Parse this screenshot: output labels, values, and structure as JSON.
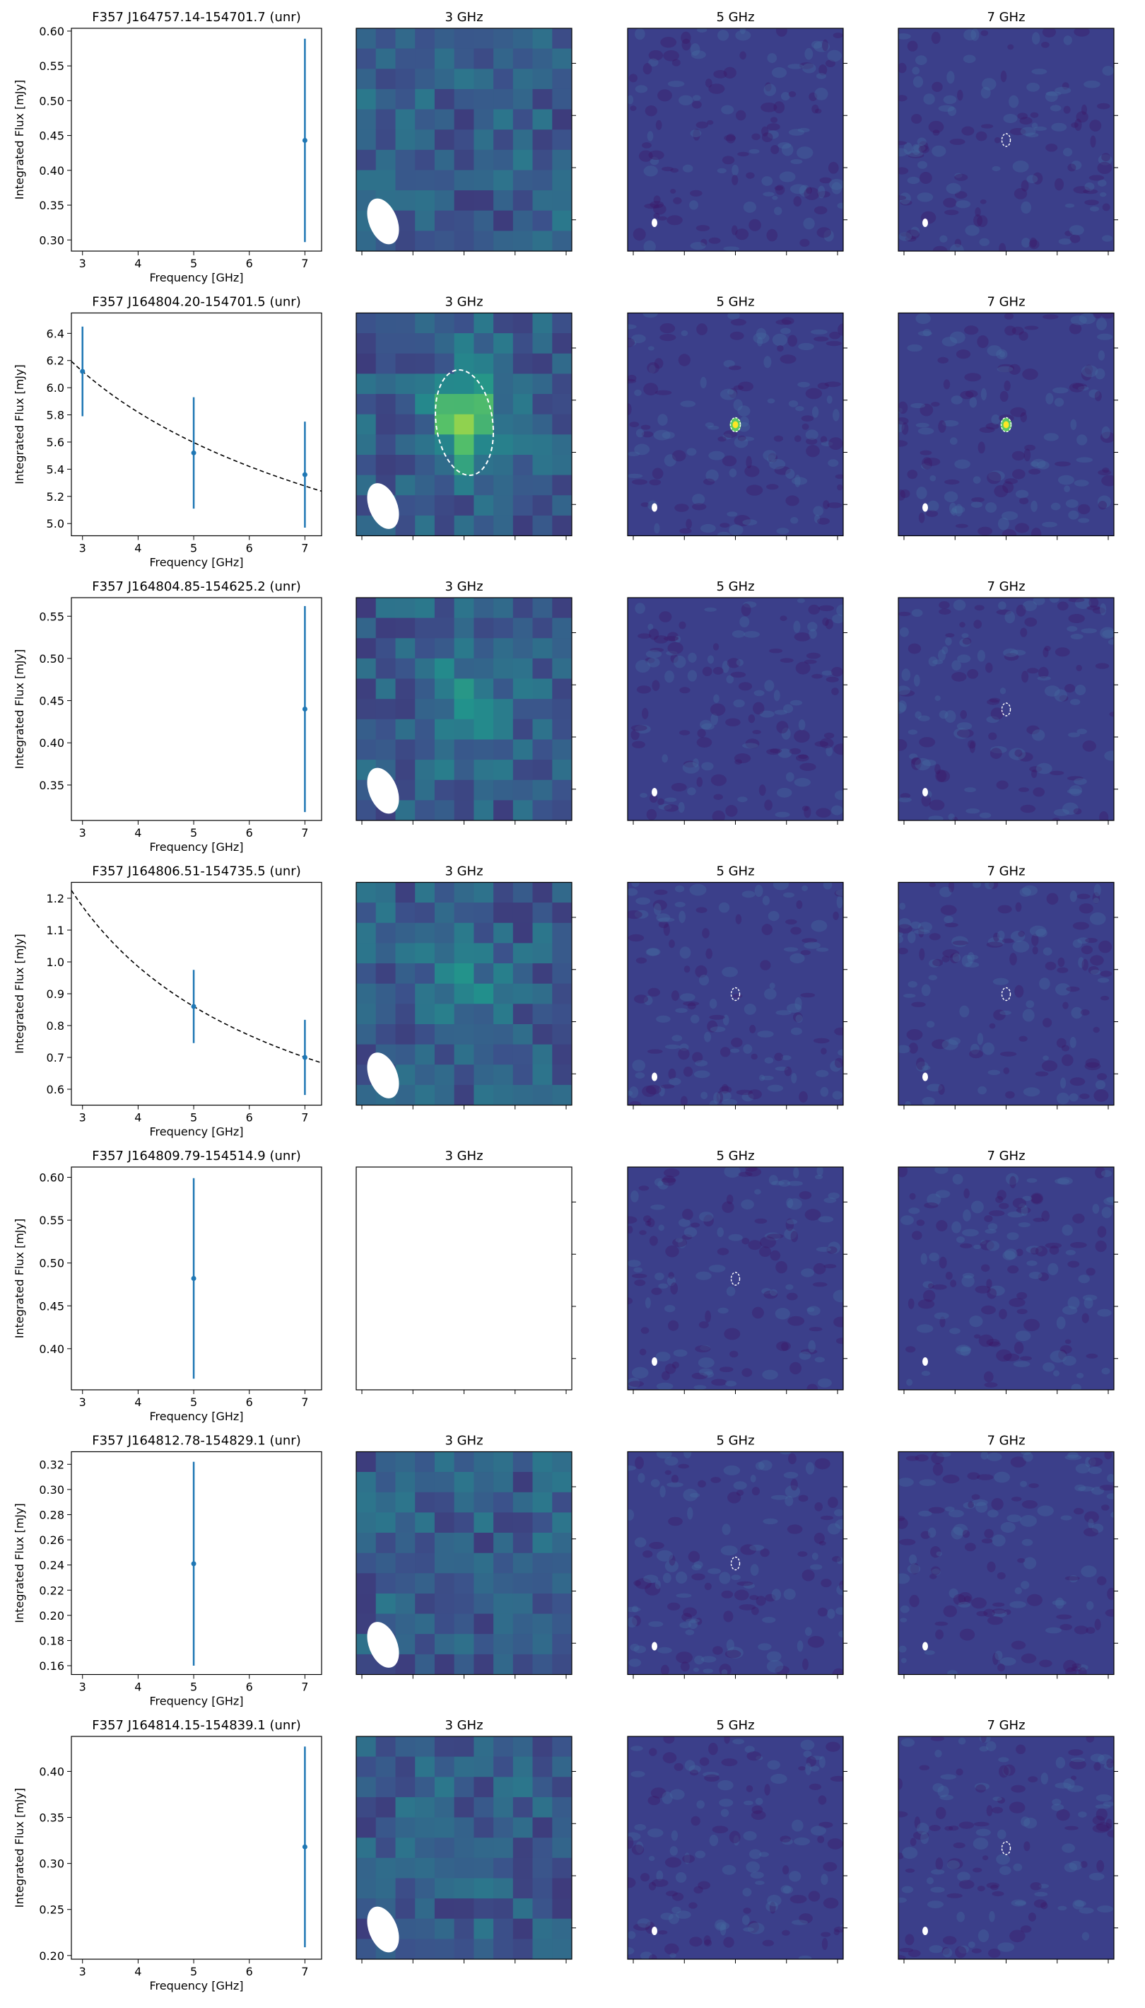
{
  "chart_data": {
    "type": "scatter",
    "x_label": "Frequency [GHz]",
    "y_label": "Integrated Flux [mJy]",
    "x_ticks": [
      3,
      4,
      5,
      6,
      7
    ],
    "xlim": [
      2.8,
      7.3
    ],
    "image_titles": [
      "3 GHz",
      "5 GHz",
      "7 GHz"
    ],
    "colors": {
      "points": "#1f77b4",
      "fit": "#000000",
      "map_background": "#3b3f8a",
      "map_bright": "#2bb07f",
      "beam": "#ffffff"
    },
    "rows": [
      {
        "title": "F357 J164757.14-154701.7 (unr)",
        "ylim": [
          0.284,
          0.604
        ],
        "y_ticks": [
          "0.30",
          "0.35",
          "0.40",
          "0.45",
          "0.50",
          "0.55",
          "0.60"
        ],
        "y_tick_values": [
          0.3,
          0.35,
          0.4,
          0.45,
          0.5,
          0.55,
          0.6
        ],
        "points": [
          {
            "x": 7,
            "y": 0.443,
            "err": 0.146
          }
        ],
        "fit": null,
        "maps": {
          "3GHz": "noise",
          "5GHz": "noise",
          "7GHz": "noise-ring"
        },
        "blob3": null
      },
      {
        "title": "F357 J164804.20-154701.5 (unr)",
        "ylim": [
          4.91,
          6.55
        ],
        "y_ticks": [
          "5.0",
          "5.2",
          "5.4",
          "5.6",
          "5.8",
          "6.0",
          "6.2",
          "6.4"
        ],
        "y_tick_values": [
          5.0,
          5.2,
          5.4,
          5.6,
          5.8,
          6.0,
          6.2,
          6.4
        ],
        "points": [
          {
            "x": 3,
            "y": 6.12,
            "err": 0.33
          },
          {
            "x": 5,
            "y": 5.52,
            "err": 0.41
          },
          {
            "x": 7,
            "y": 5.36,
            "err": 0.39
          }
        ],
        "fit": {
          "amplitude": 6.12,
          "ref_freq": 3,
          "index": -0.175
        },
        "maps": {
          "3GHz": "source-ring",
          "5GHz": "bright-spot",
          "7GHz": "bright-spot"
        },
        "blob3": "strong"
      },
      {
        "title": "F357 J164804.85-154625.2 (unr)",
        "ylim": [
          0.308,
          0.572
        ],
        "y_ticks": [
          "0.35",
          "0.40",
          "0.45",
          "0.50",
          "0.55"
        ],
        "y_tick_values": [
          0.35,
          0.4,
          0.45,
          0.5,
          0.55
        ],
        "points": [
          {
            "x": 7,
            "y": 0.44,
            "err": 0.122
          }
        ],
        "fit": null,
        "maps": {
          "3GHz": "noise",
          "5GHz": "noise",
          "7GHz": "noise-ring"
        },
        "blob3": "weak"
      },
      {
        "title": "F357 J164806.51-154735.5 (unr)",
        "ylim": [
          0.55,
          1.25
        ],
        "y_ticks": [
          "0.6",
          "0.7",
          "0.8",
          "0.9",
          "1.0",
          "1.1",
          "1.2"
        ],
        "y_tick_values": [
          0.6,
          0.7,
          0.8,
          0.9,
          1.0,
          1.1,
          1.2
        ],
        "points": [
          {
            "x": 5,
            "y": 0.86,
            "err": 0.115
          },
          {
            "x": 7,
            "y": 0.7,
            "err": 0.118
          }
        ],
        "fit": {
          "amplitude": 0.86,
          "ref_freq": 5,
          "index": -0.61
        },
        "maps": {
          "3GHz": "noise",
          "5GHz": "noise-ring",
          "7GHz": "noise-ring"
        },
        "blob3": "weak"
      },
      {
        "title": "F357 J164809.79-154514.9 (unr)",
        "ylim": [
          0.352,
          0.612
        ],
        "y_ticks": [
          "0.40",
          "0.45",
          "0.50",
          "0.55",
          "0.60"
        ],
        "y_tick_values": [
          0.4,
          0.45,
          0.5,
          0.55,
          0.6
        ],
        "points": [
          {
            "x": 5,
            "y": 0.482,
            "err": 0.117
          }
        ],
        "fit": null,
        "maps": {
          "3GHz": "empty",
          "5GHz": "noise-ring",
          "7GHz": "noise"
        },
        "blob3": null
      },
      {
        "title": "F357 J164812.78-154829.1 (unr)",
        "ylim": [
          0.153,
          0.33
        ],
        "y_ticks": [
          "0.16",
          "0.18",
          "0.20",
          "0.22",
          "0.24",
          "0.26",
          "0.28",
          "0.30",
          "0.32"
        ],
        "y_tick_values": [
          0.16,
          0.18,
          0.2,
          0.22,
          0.24,
          0.26,
          0.28,
          0.3,
          0.32
        ],
        "points": [
          {
            "x": 5,
            "y": 0.241,
            "err": 0.081
          }
        ],
        "fit": null,
        "maps": {
          "3GHz": "noise",
          "5GHz": "noise-ring",
          "7GHz": "noise"
        },
        "blob3": null
      },
      {
        "title": "F357 J164814.15-154839.1 (unr)",
        "ylim": [
          0.196,
          0.438
        ],
        "y_ticks": [
          "0.20",
          "0.25",
          "0.30",
          "0.35",
          "0.40"
        ],
        "y_tick_values": [
          0.2,
          0.25,
          0.3,
          0.35,
          0.4
        ],
        "points": [
          {
            "x": 7,
            "y": 0.318,
            "err": 0.109
          }
        ],
        "fit": null,
        "maps": {
          "3GHz": "noise",
          "5GHz": "noise",
          "7GHz": "noise-ring"
        },
        "blob3": null
      }
    ]
  }
}
